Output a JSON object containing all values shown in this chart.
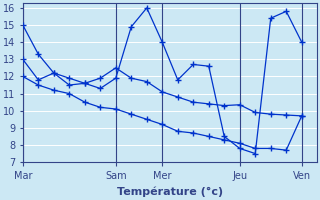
{
  "xlabel": "Température (°c)",
  "xlim": [
    0,
    19
  ],
  "ylim": [
    7,
    16.3
  ],
  "yticks": [
    7,
    8,
    9,
    10,
    11,
    12,
    13,
    14,
    15,
    16
  ],
  "day_labels": [
    "Mar",
    "Sam",
    "Mer",
    "Jeu",
    "Ven"
  ],
  "day_positions": [
    0,
    6,
    9,
    14,
    18
  ],
  "bg_color": "#cce8f4",
  "grid_color": "#ffffff",
  "line_color": "#0033cc",
  "line1_x": [
    0,
    1,
    2,
    3,
    4,
    5,
    6,
    7,
    8,
    9,
    10,
    11,
    12,
    13,
    14,
    15,
    16,
    17,
    18
  ],
  "line1_y": [
    15.0,
    13.3,
    12.2,
    11.5,
    11.6,
    11.9,
    12.5,
    11.9,
    11.7,
    11.1,
    10.8,
    10.5,
    10.4,
    10.3,
    10.35,
    9.9,
    9.8,
    9.75,
    9.7
  ],
  "line2_x": [
    0,
    1,
    2,
    3,
    4,
    5,
    6,
    7,
    8,
    9,
    10,
    11,
    12,
    13,
    14,
    15,
    16,
    17,
    18
  ],
  "line2_y": [
    13.0,
    11.8,
    12.2,
    11.9,
    11.6,
    11.3,
    11.9,
    14.9,
    16.0,
    14.0,
    11.8,
    12.7,
    12.6,
    8.5,
    7.8,
    7.5,
    15.4,
    15.8,
    14.0
  ],
  "line3_x": [
    0,
    1,
    2,
    3,
    4,
    5,
    6,
    7,
    8,
    9,
    10,
    11,
    12,
    13,
    14,
    15,
    16,
    17,
    18
  ],
  "line3_y": [
    12.0,
    11.5,
    11.2,
    11.0,
    10.5,
    10.2,
    10.1,
    9.8,
    9.5,
    9.2,
    8.8,
    8.7,
    8.5,
    8.3,
    8.1,
    7.8,
    7.8,
    7.7,
    9.7
  ],
  "divider_color": "#334488",
  "spine_color": "#334488",
  "tick_color": "#334488",
  "label_fontsize": 7,
  "xlabel_fontsize": 8
}
